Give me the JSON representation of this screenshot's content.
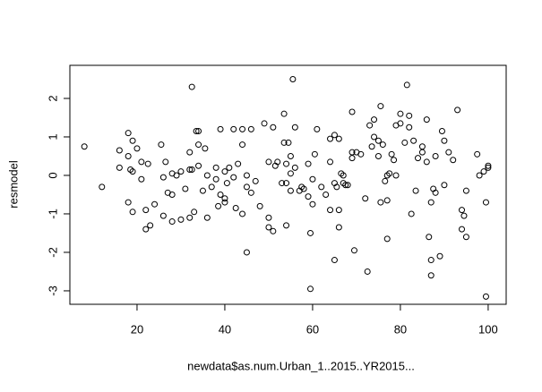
{
  "chart_data": {
    "type": "scatter",
    "x_label": "newdata$as.num.Urban_1..2015..YR2015...",
    "y_label": "resmodel",
    "color": "#000000",
    "xlim": [
      4.7,
      104.1
    ],
    "xticks": [
      20,
      40,
      60,
      80,
      100
    ],
    "ylim": [
      -3.35,
      2.86
    ],
    "yticks": [
      -3,
      -2,
      -1,
      0,
      1,
      2
    ],
    "x": [
      8,
      12,
      16,
      16,
      18,
      18,
      18,
      18.5,
      19,
      19,
      19,
      20,
      21,
      21,
      22,
      22,
      22.5,
      23,
      24,
      25.5,
      26,
      26,
      26.5,
      27,
      28,
      28,
      28,
      29,
      30,
      30,
      31,
      32,
      32,
      32,
      32.5,
      32.5,
      33,
      33.5,
      34,
      34,
      34,
      35,
      35.5,
      36,
      36,
      37,
      38,
      38,
      38.5,
      39,
      39,
      40,
      40,
      40,
      40.5,
      41,
      42,
      42,
      42.5,
      43,
      44,
      44,
      44,
      45,
      45,
      45,
      46,
      46,
      47,
      48,
      49,
      50,
      50,
      50,
      51,
      51,
      51.5,
      52,
      53,
      53.5,
      53.5,
      54,
      54,
      54,
      54.5,
      55,
      55,
      55,
      55.5,
      56,
      56,
      57,
      57.5,
      58,
      59,
      59,
      59.5,
      59.5,
      60,
      60,
      60.5,
      61,
      62,
      63,
      64,
      64,
      64,
      65,
      65,
      65,
      65.5,
      66,
      66,
      66,
      66.5,
      67,
      67,
      67.5,
      68,
      69,
      69,
      69,
      69.5,
      70,
      71,
      72,
      72.5,
      73,
      73.5,
      74,
      74,
      75,
      75,
      75.5,
      75.5,
      76,
      76.5,
      77,
      77,
      77,
      77.5,
      78,
      78.5,
      79,
      79,
      80,
      80,
      81,
      81.5,
      82,
      82,
      82.5,
      83,
      83.5,
      84,
      85,
      85,
      86,
      86,
      86.5,
      87,
      87,
      87,
      87.5,
      88,
      88,
      89,
      89.5,
      90,
      90,
      91,
      92,
      93,
      94,
      94,
      94.5,
      95,
      95,
      97.5,
      98,
      99,
      99.5,
      99.5,
      100,
      100
    ],
    "values": [
      0.75,
      -0.3,
      0.65,
      0.2,
      1.1,
      0.5,
      -0.7,
      0.15,
      0.1,
      -0.95,
      0.9,
      0.7,
      0.35,
      -0.1,
      -0.9,
      -1.4,
      0.3,
      -1.3,
      -0.75,
      0.8,
      -1.05,
      -0.05,
      0.35,
      -0.45,
      0.05,
      -1.2,
      -0.5,
      0,
      -1.15,
      0.1,
      -0.35,
      0.6,
      0.15,
      -1.1,
      0.15,
      2.3,
      -0.95,
      1.15,
      1.15,
      0.8,
      0.25,
      -0.4,
      0.7,
      -1.1,
      0,
      -0.3,
      0.2,
      -0.1,
      -0.8,
      1.2,
      -0.5,
      0.1,
      -0.6,
      -0.7,
      -0.2,
      0.2,
      -0.05,
      1.2,
      -0.85,
      0.3,
      1.2,
      0.8,
      -1,
      -2,
      -0.3,
      0,
      -0.45,
      1.2,
      -0.15,
      -0.8,
      1.35,
      0.35,
      -1.1,
      -1.35,
      1.25,
      -1.45,
      0.25,
      0.35,
      -0.2,
      0.85,
      1.6,
      -1.3,
      0.3,
      -0.2,
      0.85,
      0.5,
      0.05,
      -0.4,
      2.5,
      0.2,
      1.25,
      -0.4,
      -0.3,
      -0.35,
      0.3,
      -0.55,
      -1.5,
      -2.95,
      -0.1,
      -0.75,
      0.55,
      1.2,
      -0.3,
      -0.5,
      0.95,
      0.35,
      -0.9,
      1.05,
      -2.2,
      -0.2,
      -0.3,
      0.95,
      -1.35,
      -0.9,
      0.05,
      0,
      -0.2,
      -0.25,
      -0.25,
      1.65,
      0.6,
      0.45,
      -1.95,
      0.6,
      0.55,
      -0.6,
      -2.5,
      1.3,
      0.75,
      1.45,
      1,
      0.9,
      0.5,
      1.8,
      -0.7,
      0.8,
      -0.15,
      0,
      -1.65,
      -0.65,
      0.05,
      0.55,
      0.4,
      0,
      1.3,
      1.35,
      1.6,
      0.85,
      2.35,
      1.55,
      1.25,
      -1,
      0.9,
      -0.4,
      0.45,
      0.6,
      0.75,
      0.35,
      1.45,
      -1.6,
      -2.6,
      -2.2,
      -0.7,
      -0.35,
      0.5,
      -0.45,
      -2.1,
      1.15,
      0.9,
      -0.25,
      0.6,
      0.4,
      1.7,
      -0.9,
      -1.4,
      -1.05,
      -1.6,
      -0.4,
      0.55,
      0,
      0.1,
      -0.7,
      -3.15,
      0.25,
      0.2
    ]
  }
}
